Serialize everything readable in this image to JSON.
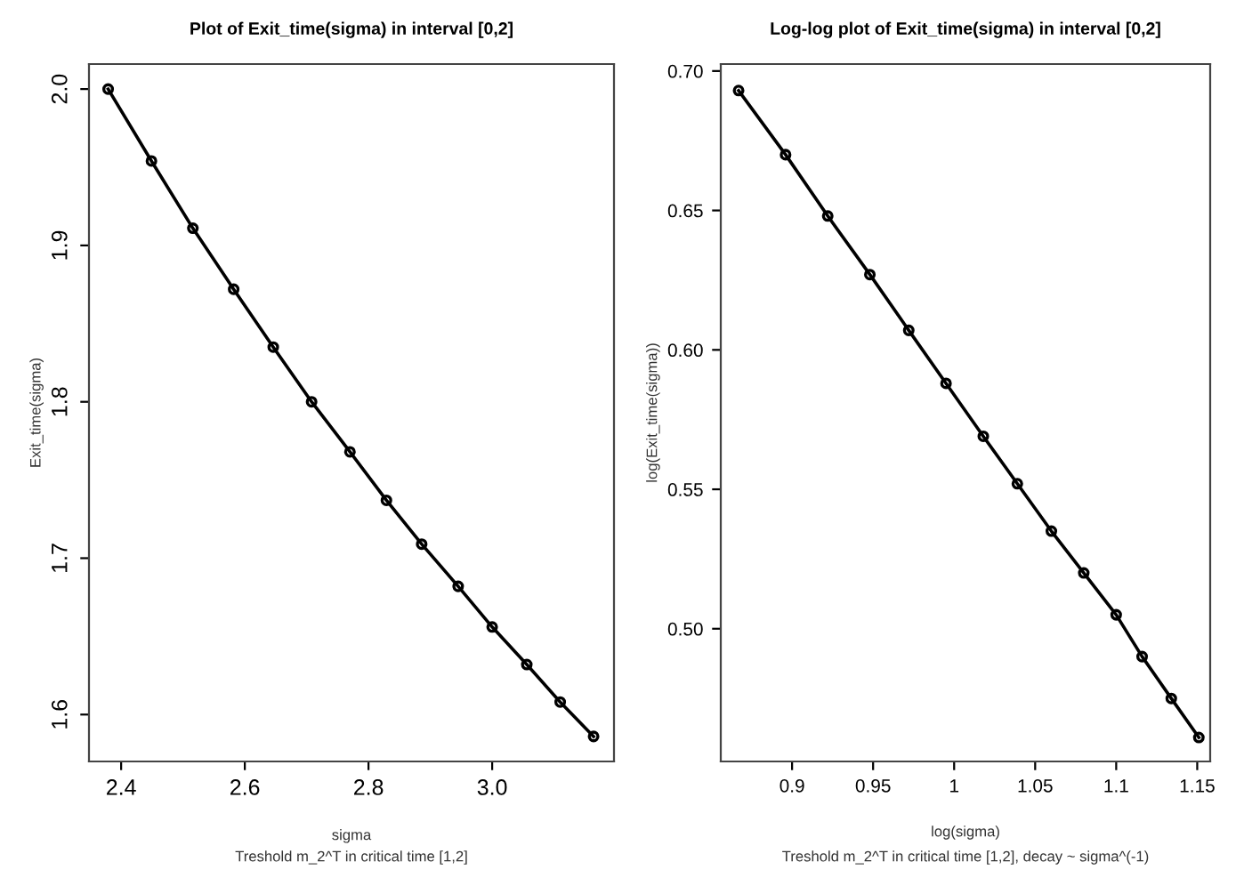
{
  "chart_data": [
    {
      "type": "line",
      "title": "Plot of Exit_time(sigma) in interval [0,2]",
      "xlabel": "sigma",
      "ylabel": "Exit_time(sigma)",
      "annotations": [
        "Treshold m_2^T in critical time [1,2]"
      ],
      "x": [
        2.379,
        2.449,
        2.516,
        2.582,
        2.646,
        2.708,
        2.77,
        2.829,
        2.886,
        2.945,
        3.0,
        3.056,
        3.11,
        3.164
      ],
      "series": [
        {
          "color": "#000000",
          "values": [
            2.0,
            1.954,
            1.911,
            1.872,
            1.835,
            1.8,
            1.768,
            1.737,
            1.709,
            1.682,
            1.656,
            1.632,
            1.608,
            1.586
          ]
        }
      ],
      "xlim": [
        2.348,
        3.197
      ],
      "ylim": [
        1.57,
        2.016
      ],
      "xticks": [
        {
          "value": 2.4,
          "label": "2.4"
        },
        {
          "value": 2.6,
          "label": "2.6"
        },
        {
          "value": 2.8,
          "label": "2.8"
        },
        {
          "value": 3.0,
          "label": "3.0"
        }
      ],
      "yticks": [
        {
          "value": 1.6,
          "label": "1.6"
        },
        {
          "value": 1.7,
          "label": "1.7"
        },
        {
          "value": 1.8,
          "label": "1.8"
        },
        {
          "value": 1.9,
          "label": "1.9"
        },
        {
          "value": 2.0,
          "label": "2.0"
        }
      ],
      "grid": false,
      "legend": false,
      "marker": "circle",
      "line_style": "solid"
    },
    {
      "type": "line",
      "title": "Log-log plot of Exit_time(sigma) in interval [0,2]",
      "xlabel": "log(sigma)",
      "ylabel": "log(Exit_time(sigma))",
      "annotations": [
        "Treshold m_2^T in critical time [1,2], decay ~ sigma^(-1)"
      ],
      "x": [
        0.867,
        0.896,
        0.922,
        0.948,
        0.972,
        0.995,
        1.018,
        1.039,
        1.06,
        1.08,
        1.1,
        1.116,
        1.134,
        1.151
      ],
      "series": [
        {
          "color": "#000000",
          "values": [
            0.693,
            0.67,
            0.648,
            0.627,
            0.607,
            0.588,
            0.569,
            0.552,
            0.535,
            0.52,
            0.505,
            0.49,
            0.475,
            0.461
          ]
        }
      ],
      "xlim": [
        0.856,
        1.158
      ],
      "ylim": [
        0.4524,
        0.7025
      ],
      "xticks": [
        0.9,
        0.95,
        1,
        1.05,
        1.1,
        1.15
      ],
      "yticks": [
        {
          "value": 0.5,
          "label": "0.50"
        },
        {
          "value": 0.55,
          "label": "0.55"
        },
        {
          "value": 0.6,
          "label": "0.60"
        },
        {
          "value": 0.65,
          "label": "0.65"
        },
        {
          "value": 0.7,
          "label": "0.70"
        }
      ],
      "grid": false,
      "legend": false,
      "marker": "circle",
      "line_style": "solid"
    }
  ]
}
